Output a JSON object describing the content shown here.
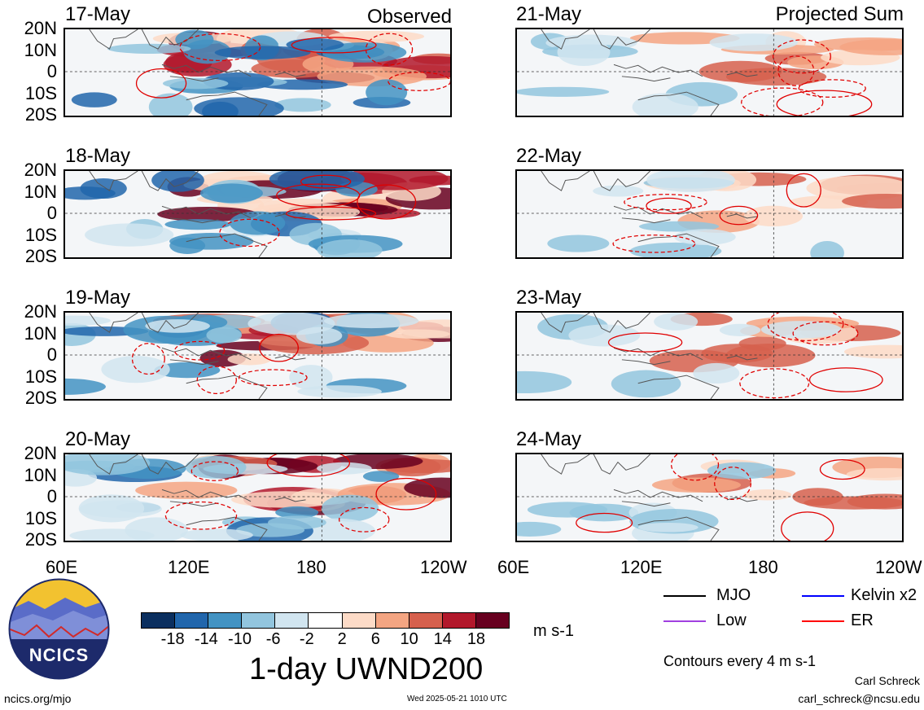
{
  "panel_columns": [
    {
      "heading": "Observed",
      "dates": [
        "17-May",
        "18-May",
        "19-May",
        "20-May"
      ]
    },
    {
      "heading": "Projected Sum",
      "dates": [
        "21-May",
        "22-May",
        "23-May",
        "24-May"
      ]
    }
  ],
  "lat_labels": [
    "20N",
    "10N",
    "0",
    "10S",
    "20S"
  ],
  "lon_labels": [
    "60E",
    "120E",
    "180",
    "120W"
  ],
  "colorbar": {
    "ticks": [
      "-18",
      "-14",
      "-10",
      "-6",
      "-2",
      "2",
      "6",
      "10",
      "14",
      "18"
    ],
    "colors": [
      "#0b2f5f",
      "#2166ac",
      "#4393c3",
      "#92c5de",
      "#d1e5f0",
      "#ffffff",
      "#fddbc7",
      "#f4a582",
      "#d6604d",
      "#b2182b",
      "#67001f"
    ],
    "unit": "m s-1"
  },
  "title": "1-day UWND200",
  "legend": [
    {
      "label": "MJO",
      "color": "#000000"
    },
    {
      "label": "Kelvin x2",
      "color": "#0000ff"
    },
    {
      "label": "Low",
      "color": "#a040e0"
    },
    {
      "label": "ER",
      "color": "#ff0000"
    }
  ],
  "contour_note": "Contours every 4 m s-1",
  "credit": {
    "name": "Carl Schreck",
    "email": "carl_schreck@ncsu.edu"
  },
  "logo_text": "NCICS",
  "url": "ncics.org/mjo",
  "timestamp": "Wed 2025-05-21 1010 UTC"
}
